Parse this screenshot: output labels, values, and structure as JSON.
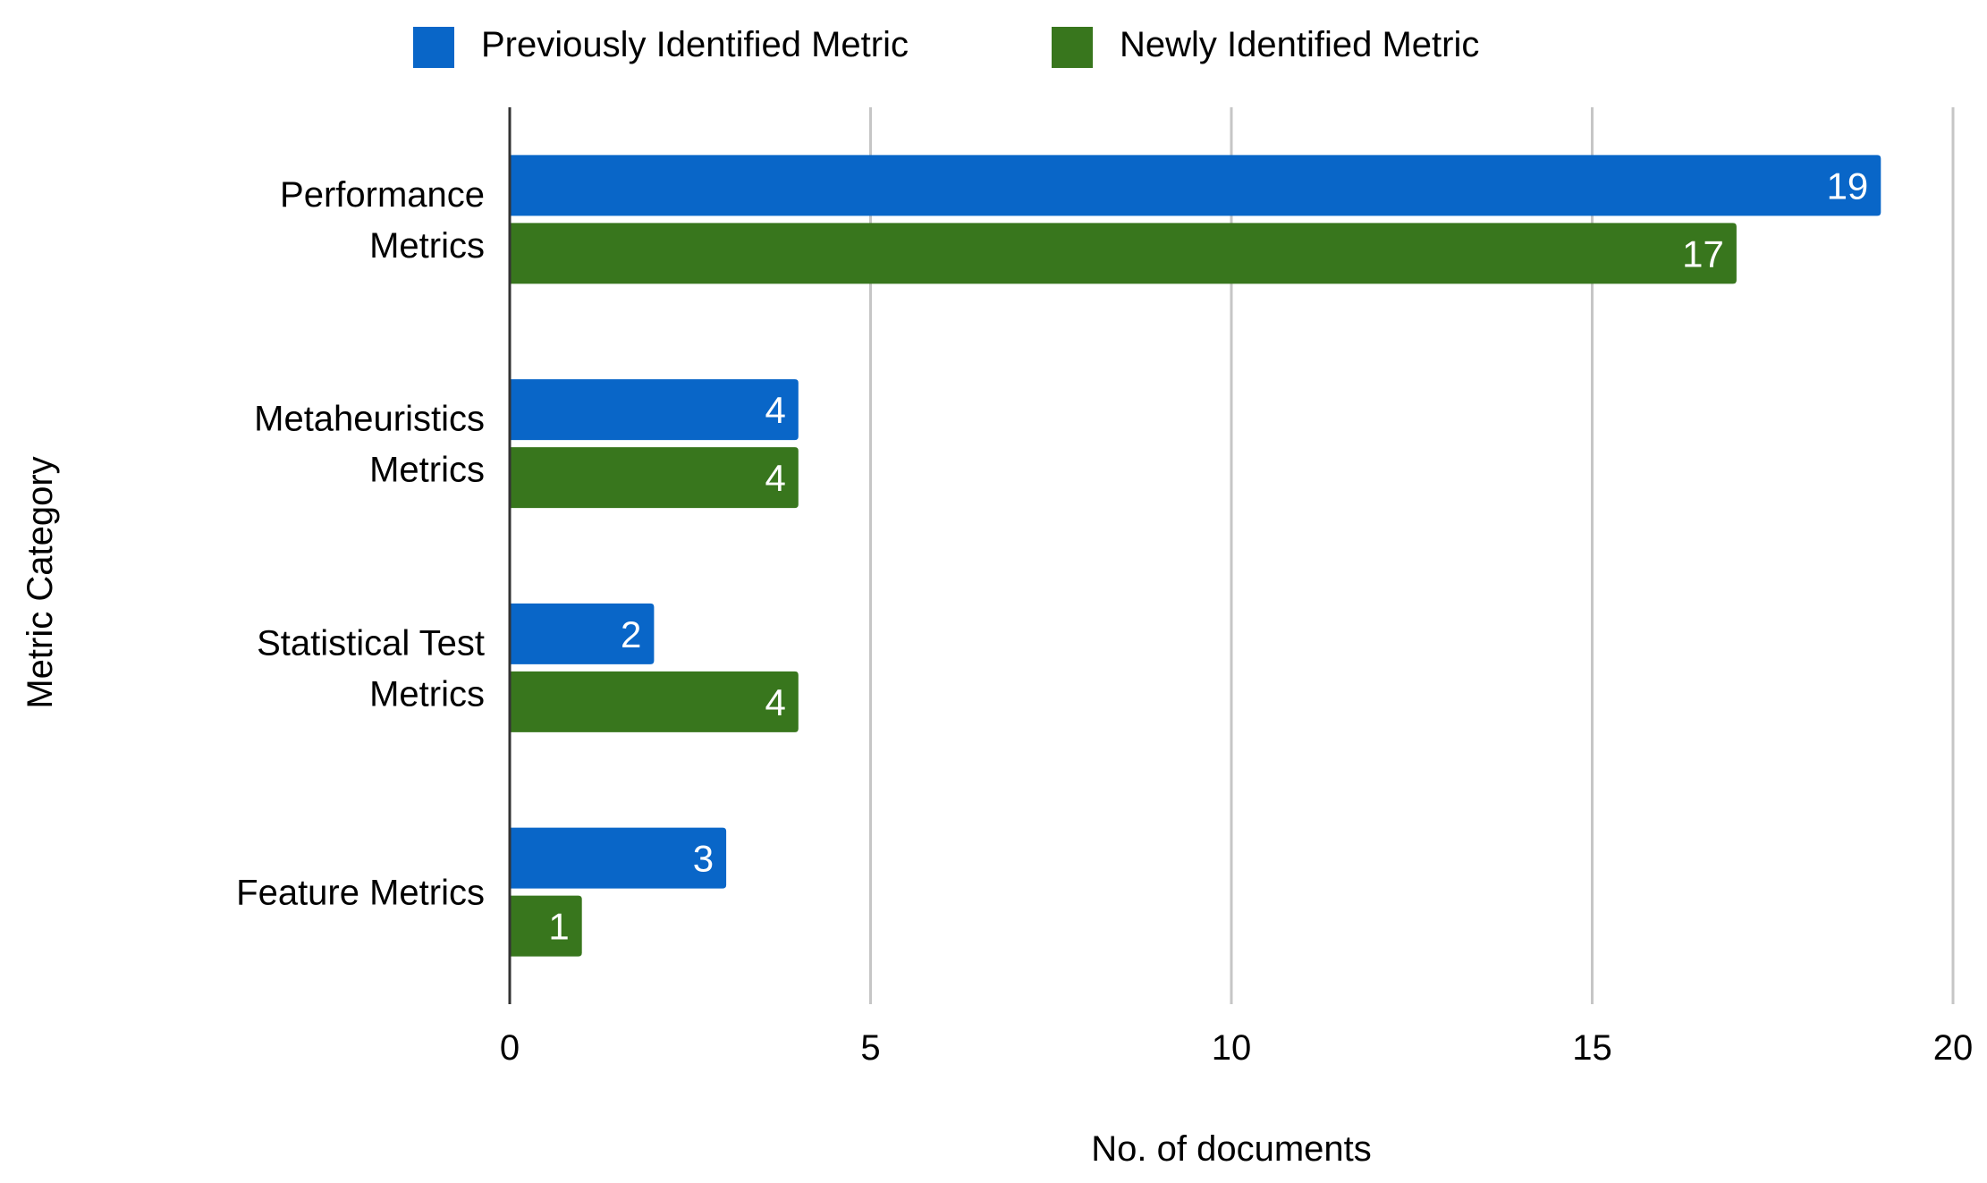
{
  "chart_data": {
    "type": "bar",
    "orientation": "horizontal",
    "categories": [
      [
        "Performance",
        "Metrics"
      ],
      [
        "Metaheuristics",
        "Metrics"
      ],
      [
        "Statistical Test",
        "Metrics"
      ],
      [
        "Feature Metrics"
      ]
    ],
    "series": [
      {
        "name": "Previously Identified Metric",
        "color": "#0966c8",
        "values": [
          19,
          4,
          2,
          3
        ]
      },
      {
        "name": "Newly Identified Metric",
        "color": "#38761d",
        "values": [
          17,
          4,
          4,
          1
        ]
      }
    ],
    "xlabel": "No. of documents",
    "ylabel": "Metric Category",
    "xlim": [
      0,
      20
    ],
    "xticks": [
      "0",
      "5",
      "10",
      "15",
      "20"
    ],
    "grid": "vertical",
    "legend": "top-center",
    "data_labels": "inside-end"
  }
}
